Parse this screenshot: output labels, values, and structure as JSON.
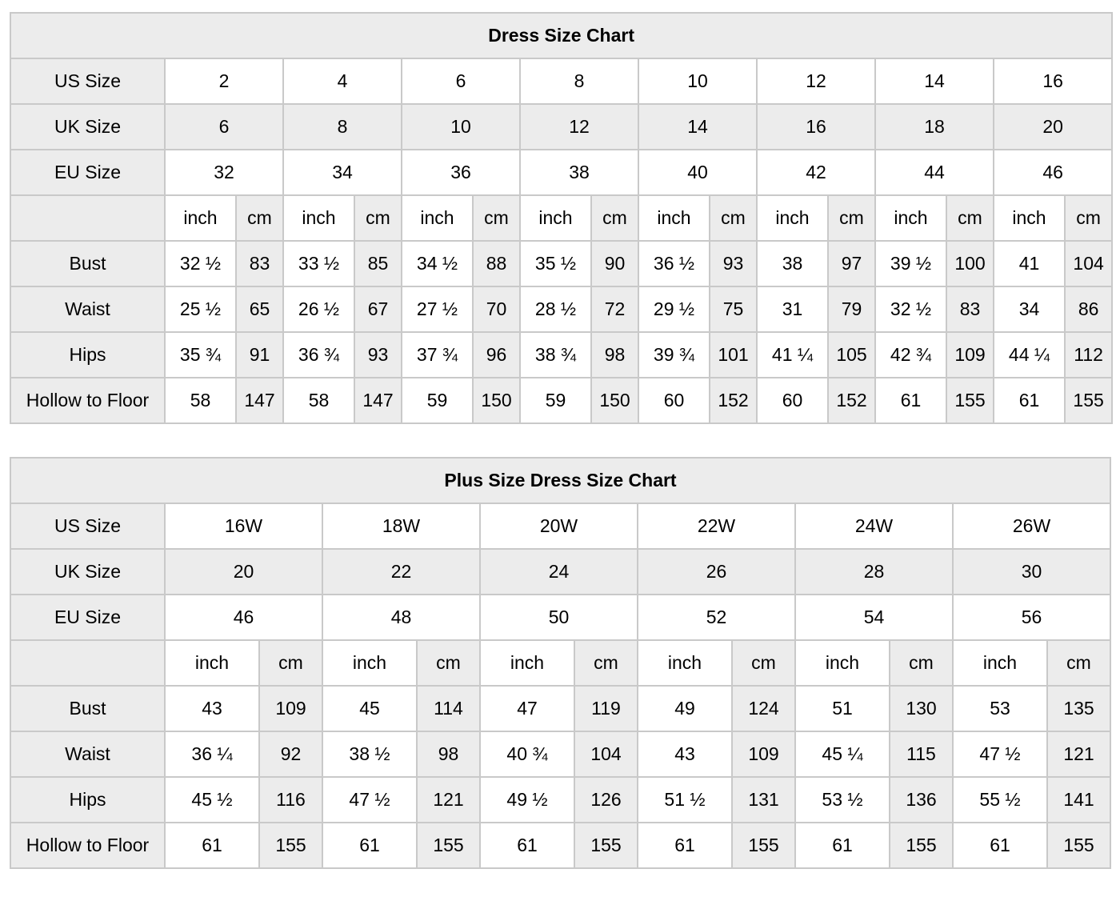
{
  "colors": {
    "shaded_cell": "#ececec",
    "plain_cell": "#ffffff",
    "border": "#c9c9c9",
    "text": "#000000"
  },
  "chart_data": [
    {
      "type": "table",
      "title": "Dress Size Chart",
      "size_rows": [
        {
          "label": "US Size",
          "shaded": false,
          "values": [
            "2",
            "4",
            "6",
            "8",
            "10",
            "12",
            "14",
            "16"
          ]
        },
        {
          "label": "UK Size",
          "shaded": true,
          "values": [
            "6",
            "8",
            "10",
            "12",
            "14",
            "16",
            "18",
            "20"
          ]
        },
        {
          "label": "EU Size",
          "shaded": false,
          "values": [
            "32",
            "34",
            "36",
            "38",
            "40",
            "42",
            "44",
            "46"
          ]
        }
      ],
      "unit_labels": [
        "inch",
        "cm"
      ],
      "measurement_rows": [
        {
          "label": "Bust",
          "values": [
            [
              "32 ½",
              "83"
            ],
            [
              "33 ½",
              "85"
            ],
            [
              "34 ½",
              "88"
            ],
            [
              "35 ½",
              "90"
            ],
            [
              "36 ½",
              "93"
            ],
            [
              "38",
              "97"
            ],
            [
              "39 ½",
              "100"
            ],
            [
              "41",
              "104"
            ]
          ]
        },
        {
          "label": "Waist",
          "values": [
            [
              "25 ½",
              "65"
            ],
            [
              "26 ½",
              "67"
            ],
            [
              "27 ½",
              "70"
            ],
            [
              "28 ½",
              "72"
            ],
            [
              "29 ½",
              "75"
            ],
            [
              "31",
              "79"
            ],
            [
              "32 ½",
              "83"
            ],
            [
              "34",
              "86"
            ]
          ]
        },
        {
          "label": "Hips",
          "values": [
            [
              "35 ¾",
              "91"
            ],
            [
              "36 ¾",
              "93"
            ],
            [
              "37 ¾",
              "96"
            ],
            [
              "38 ¾",
              "98"
            ],
            [
              "39 ¾",
              "101"
            ],
            [
              "41 ¼",
              "105"
            ],
            [
              "42 ¾",
              "109"
            ],
            [
              "44 ¼",
              "112"
            ]
          ]
        },
        {
          "label": "Hollow to Floor",
          "values": [
            [
              "58",
              "147"
            ],
            [
              "58",
              "147"
            ],
            [
              "59",
              "150"
            ],
            [
              "59",
              "150"
            ],
            [
              "60",
              "152"
            ],
            [
              "60",
              "152"
            ],
            [
              "61",
              "155"
            ],
            [
              "61",
              "155"
            ]
          ]
        }
      ]
    },
    {
      "type": "table",
      "title": "Plus Size Dress Size Chart",
      "size_rows": [
        {
          "label": "US Size",
          "shaded": false,
          "values": [
            "16W",
            "18W",
            "20W",
            "22W",
            "24W",
            "26W"
          ]
        },
        {
          "label": "UK Size",
          "shaded": true,
          "values": [
            "20",
            "22",
            "24",
            "26",
            "28",
            "30"
          ]
        },
        {
          "label": "EU Size",
          "shaded": false,
          "values": [
            "46",
            "48",
            "50",
            "52",
            "54",
            "56"
          ]
        }
      ],
      "unit_labels": [
        "inch",
        "cm"
      ],
      "measurement_rows": [
        {
          "label": "Bust",
          "values": [
            [
              "43",
              "109"
            ],
            [
              "45",
              "114"
            ],
            [
              "47",
              "119"
            ],
            [
              "49",
              "124"
            ],
            [
              "51",
              "130"
            ],
            [
              "53",
              "135"
            ]
          ]
        },
        {
          "label": "Waist",
          "values": [
            [
              "36 ¼",
              "92"
            ],
            [
              "38 ½",
              "98"
            ],
            [
              "40 ¾",
              "104"
            ],
            [
              "43",
              "109"
            ],
            [
              "45 ¼",
              "115"
            ],
            [
              "47 ½",
              "121"
            ]
          ]
        },
        {
          "label": "Hips",
          "values": [
            [
              "45 ½",
              "116"
            ],
            [
              "47 ½",
              "121"
            ],
            [
              "49 ½",
              "126"
            ],
            [
              "51 ½",
              "131"
            ],
            [
              "53 ½",
              "136"
            ],
            [
              "55 ½",
              "141"
            ]
          ]
        },
        {
          "label": "Hollow to Floor",
          "values": [
            [
              "61",
              "155"
            ],
            [
              "61",
              "155"
            ],
            [
              "61",
              "155"
            ],
            [
              "61",
              "155"
            ],
            [
              "61",
              "155"
            ],
            [
              "61",
              "155"
            ]
          ]
        }
      ]
    }
  ]
}
